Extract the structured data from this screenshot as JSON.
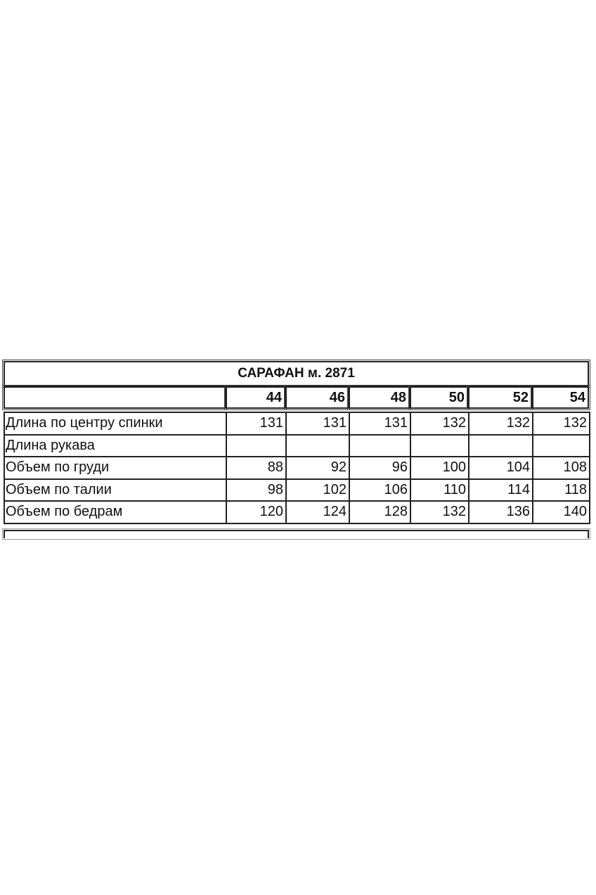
{
  "title": "САРАФАН м. 2871",
  "sizes": [
    "44",
    "46",
    "48",
    "50",
    "52",
    "54"
  ],
  "rows": [
    {
      "label": "Длина по центру спинки",
      "values": [
        "131",
        "131",
        "131",
        "132",
        "132",
        "132"
      ]
    },
    {
      "label": "Длина рукава",
      "values": [
        "",
        "",
        "",
        "",
        "",
        ""
      ]
    },
    {
      "label": "Объем по груди",
      "values": [
        "88",
        "92",
        "96",
        "100",
        "104",
        "108"
      ]
    },
    {
      "label": "Объем по талии",
      "values": [
        "98",
        "102",
        "106",
        "110",
        "114",
        "118"
      ]
    },
    {
      "label": "Объем по бедрам",
      "values": [
        "120",
        "124",
        "128",
        "132",
        "136",
        "140"
      ]
    }
  ]
}
